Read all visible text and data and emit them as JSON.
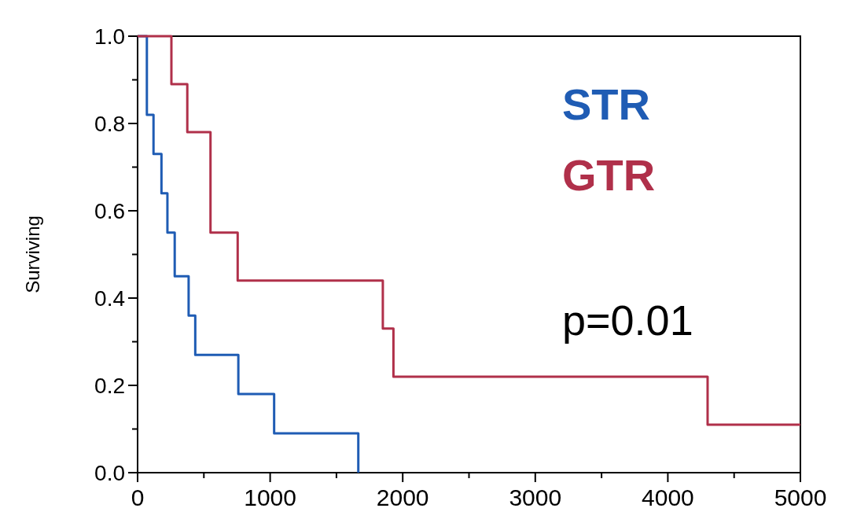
{
  "chart_data": {
    "type": "step",
    "ylabel": "Surviving",
    "xlim": [
      0,
      5000
    ],
    "ylim": [
      0,
      1
    ],
    "xticks": [
      0,
      {
        "value": 500,
        "label": null
      },
      1000,
      {
        "value": 1500,
        "label": null
      },
      2000,
      {
        "value": 2500,
        "label": null
      },
      3000,
      {
        "value": 3500,
        "label": null
      },
      4000,
      {
        "value": 4500,
        "label": null
      },
      5000
    ],
    "yticks": [
      "0.0",
      {
        "value": 0.1,
        "label": null
      },
      {
        "value": 0.2,
        "label": "0.2"
      },
      {
        "value": 0.3,
        "label": null
      },
      {
        "value": 0.4,
        "label": "0.4"
      },
      {
        "value": 0.5,
        "label": null
      },
      {
        "value": 0.6,
        "label": "0.6"
      },
      {
        "value": 0.7,
        "label": null
      },
      {
        "value": 0.8,
        "label": "0.8"
      },
      {
        "value": 0.9,
        "label": null
      },
      {
        "value": 1,
        "label": "1.0"
      }
    ],
    "series": [
      {
        "name": "STR",
        "color": "#1f5cb4",
        "x": [
          0,
          70,
          120,
          180,
          225,
          280,
          385,
          435,
          760,
          1030,
          1665
        ],
        "values": [
          1,
          0.82,
          0.73,
          0.64,
          0.55,
          0.45,
          0.36,
          0.27,
          0.18,
          0.09,
          0
        ]
      },
      {
        "name": "GTR",
        "color": "#b0304a",
        "x": [
          0,
          255,
          375,
          550,
          755,
          1850,
          1930,
          4300,
          5000
        ],
        "values": [
          1,
          0.89,
          0.78,
          0.55,
          0.44,
          0.33,
          0.22,
          0.11,
          0.11
        ]
      }
    ],
    "legend": "top right",
    "annotations": [
      "p=0.01"
    ]
  }
}
